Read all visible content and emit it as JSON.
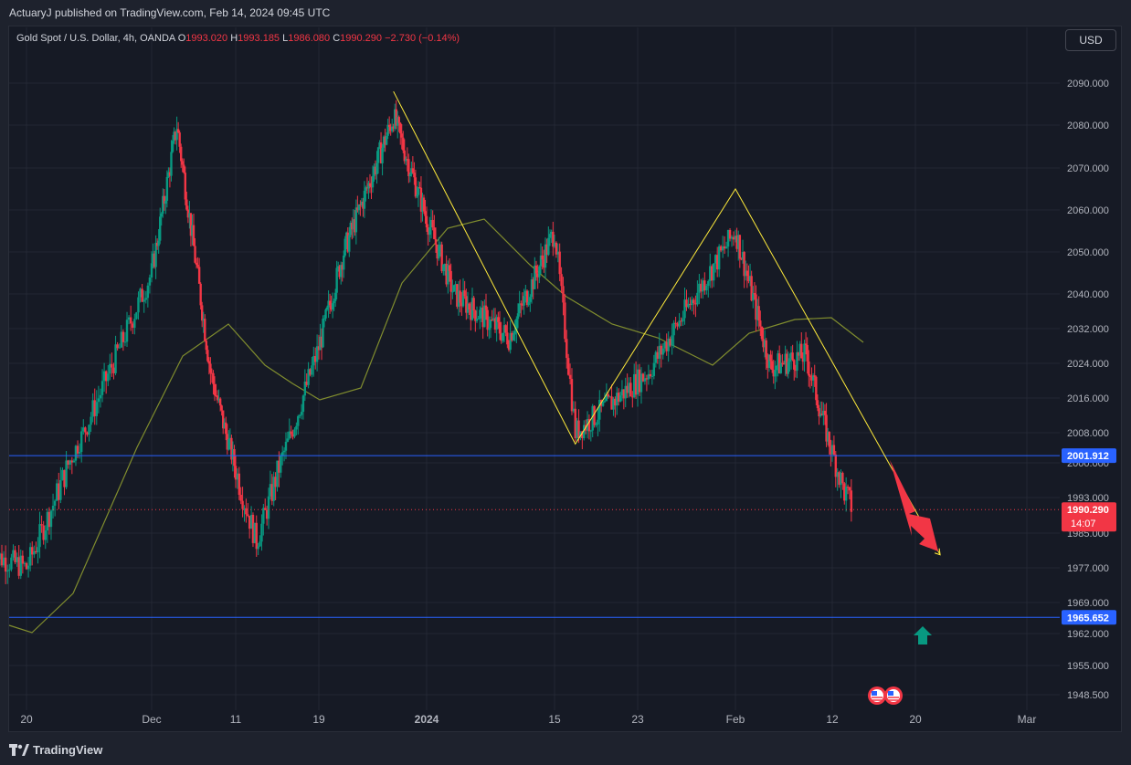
{
  "header": {
    "publish_text": "ActuaryJ published on TradingView.com, Feb 14, 2024 09:45 UTC"
  },
  "legend": {
    "symbol": "Gold Spot / U.S. Dollar, 4h, OANDA",
    "o_label": "O",
    "o_value": "1993.020",
    "h_label": "H",
    "h_value": "1993.185",
    "l_label": "L",
    "l_value": "1986.080",
    "c_label": "C",
    "c_value": "1990.290",
    "change": "−2.730 (−0.14%)"
  },
  "currency_button": "USD",
  "price_axis": {
    "ticks": [
      "2090.000",
      "2080.000",
      "2070.000",
      "2060.000",
      "2050.000",
      "2040.000",
      "2032.000",
      "2024.000",
      "2016.000",
      "2008.000",
      "2000.000",
      "1993.000",
      "1985.000",
      "1977.000",
      "1969.000",
      "1962.000",
      "1955.000",
      "1948.500"
    ],
    "current_price": "1990.290",
    "countdown": "14:07",
    "level_upper": "2001.912",
    "level_lower": "1965.652"
  },
  "time_axis": {
    "ticks": [
      "20",
      "Dec",
      "11",
      "19",
      "2024",
      "15",
      "23",
      "Feb",
      "12",
      "20",
      "Mar"
    ]
  },
  "footer": {
    "brand": "TradingView"
  },
  "colors": {
    "up": "#089981",
    "down": "#f23645",
    "level": "#2962ff",
    "pattern": "#ffeb3b",
    "ma": "#808d2e",
    "bg": "#161a25"
  },
  "chart_data": {
    "type": "candlestick",
    "title": "Gold Spot / U.S. Dollar, 4h, OANDA",
    "ylim": [
      1945,
      2097
    ],
    "horizontal_levels": [
      2001.912,
      1965.652
    ],
    "pattern_points": [
      {
        "date": "Dec 28",
        "price": 2088
      },
      {
        "date": "Jan 17",
        "price": 2005
      },
      {
        "date": "Feb 1",
        "price": 2065
      },
      {
        "date": "Feb 22",
        "price": 1980
      }
    ],
    "ohlc_sample": [
      {
        "date": "Nov 17",
        "price": 1980
      },
      {
        "date": "Nov 20",
        "price": 1977
      },
      {
        "date": "Dec 1",
        "price": 2045
      },
      {
        "date": "Dec 4",
        "price": 2080
      },
      {
        "date": "Dec 8",
        "price": 2022
      },
      {
        "date": "Dec 13",
        "price": 1983
      },
      {
        "date": "Dec 22",
        "price": 2050
      },
      {
        "date": "Dec 28",
        "price": 2082
      },
      {
        "date": "Jan 4",
        "price": 2040
      },
      {
        "date": "Jan 10",
        "price": 2030
      },
      {
        "date": "Jan 15",
        "price": 2055
      },
      {
        "date": "Jan 17",
        "price": 2008
      },
      {
        "date": "Jan 24",
        "price": 2022
      },
      {
        "date": "Feb 1",
        "price": 2055
      },
      {
        "date": "Feb 5",
        "price": 2023
      },
      {
        "date": "Feb 9",
        "price": 2026
      },
      {
        "date": "Feb 13",
        "price": 1995
      },
      {
        "date": "Feb 14",
        "price": 1990.29
      }
    ]
  }
}
